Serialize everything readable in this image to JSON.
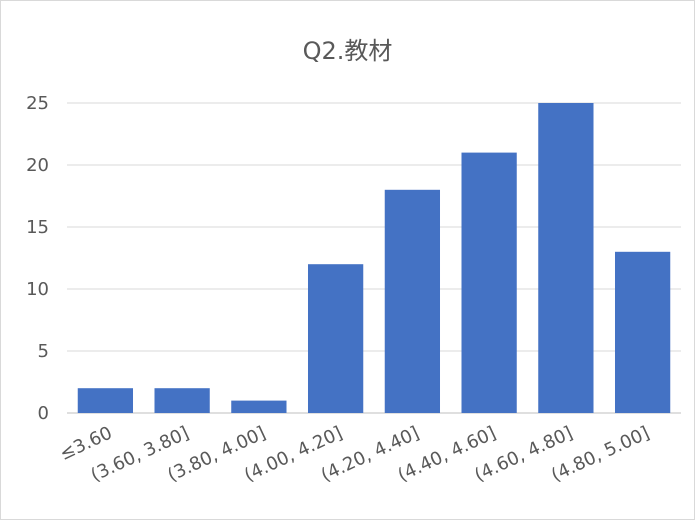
{
  "chart_data": {
    "type": "bar",
    "title": "Q2.教材",
    "categories": [
      "≤3.60",
      "(3.60, 3.80]",
      "(3.80, 4.00]",
      "(4.00, 4.20]",
      "(4.20, 4.40]",
      "(4.40, 4.60]",
      "(4.60, 4.80]",
      "(4.80, 5.00]"
    ],
    "values": [
      2,
      2,
      1,
      12,
      18,
      21,
      25,
      13
    ],
    "ylim": [
      0,
      25
    ],
    "yticks": [
      0,
      5,
      10,
      15,
      20,
      25
    ],
    "grid": true,
    "bar_color": "#4472C4",
    "xlabel": "",
    "ylabel": ""
  }
}
